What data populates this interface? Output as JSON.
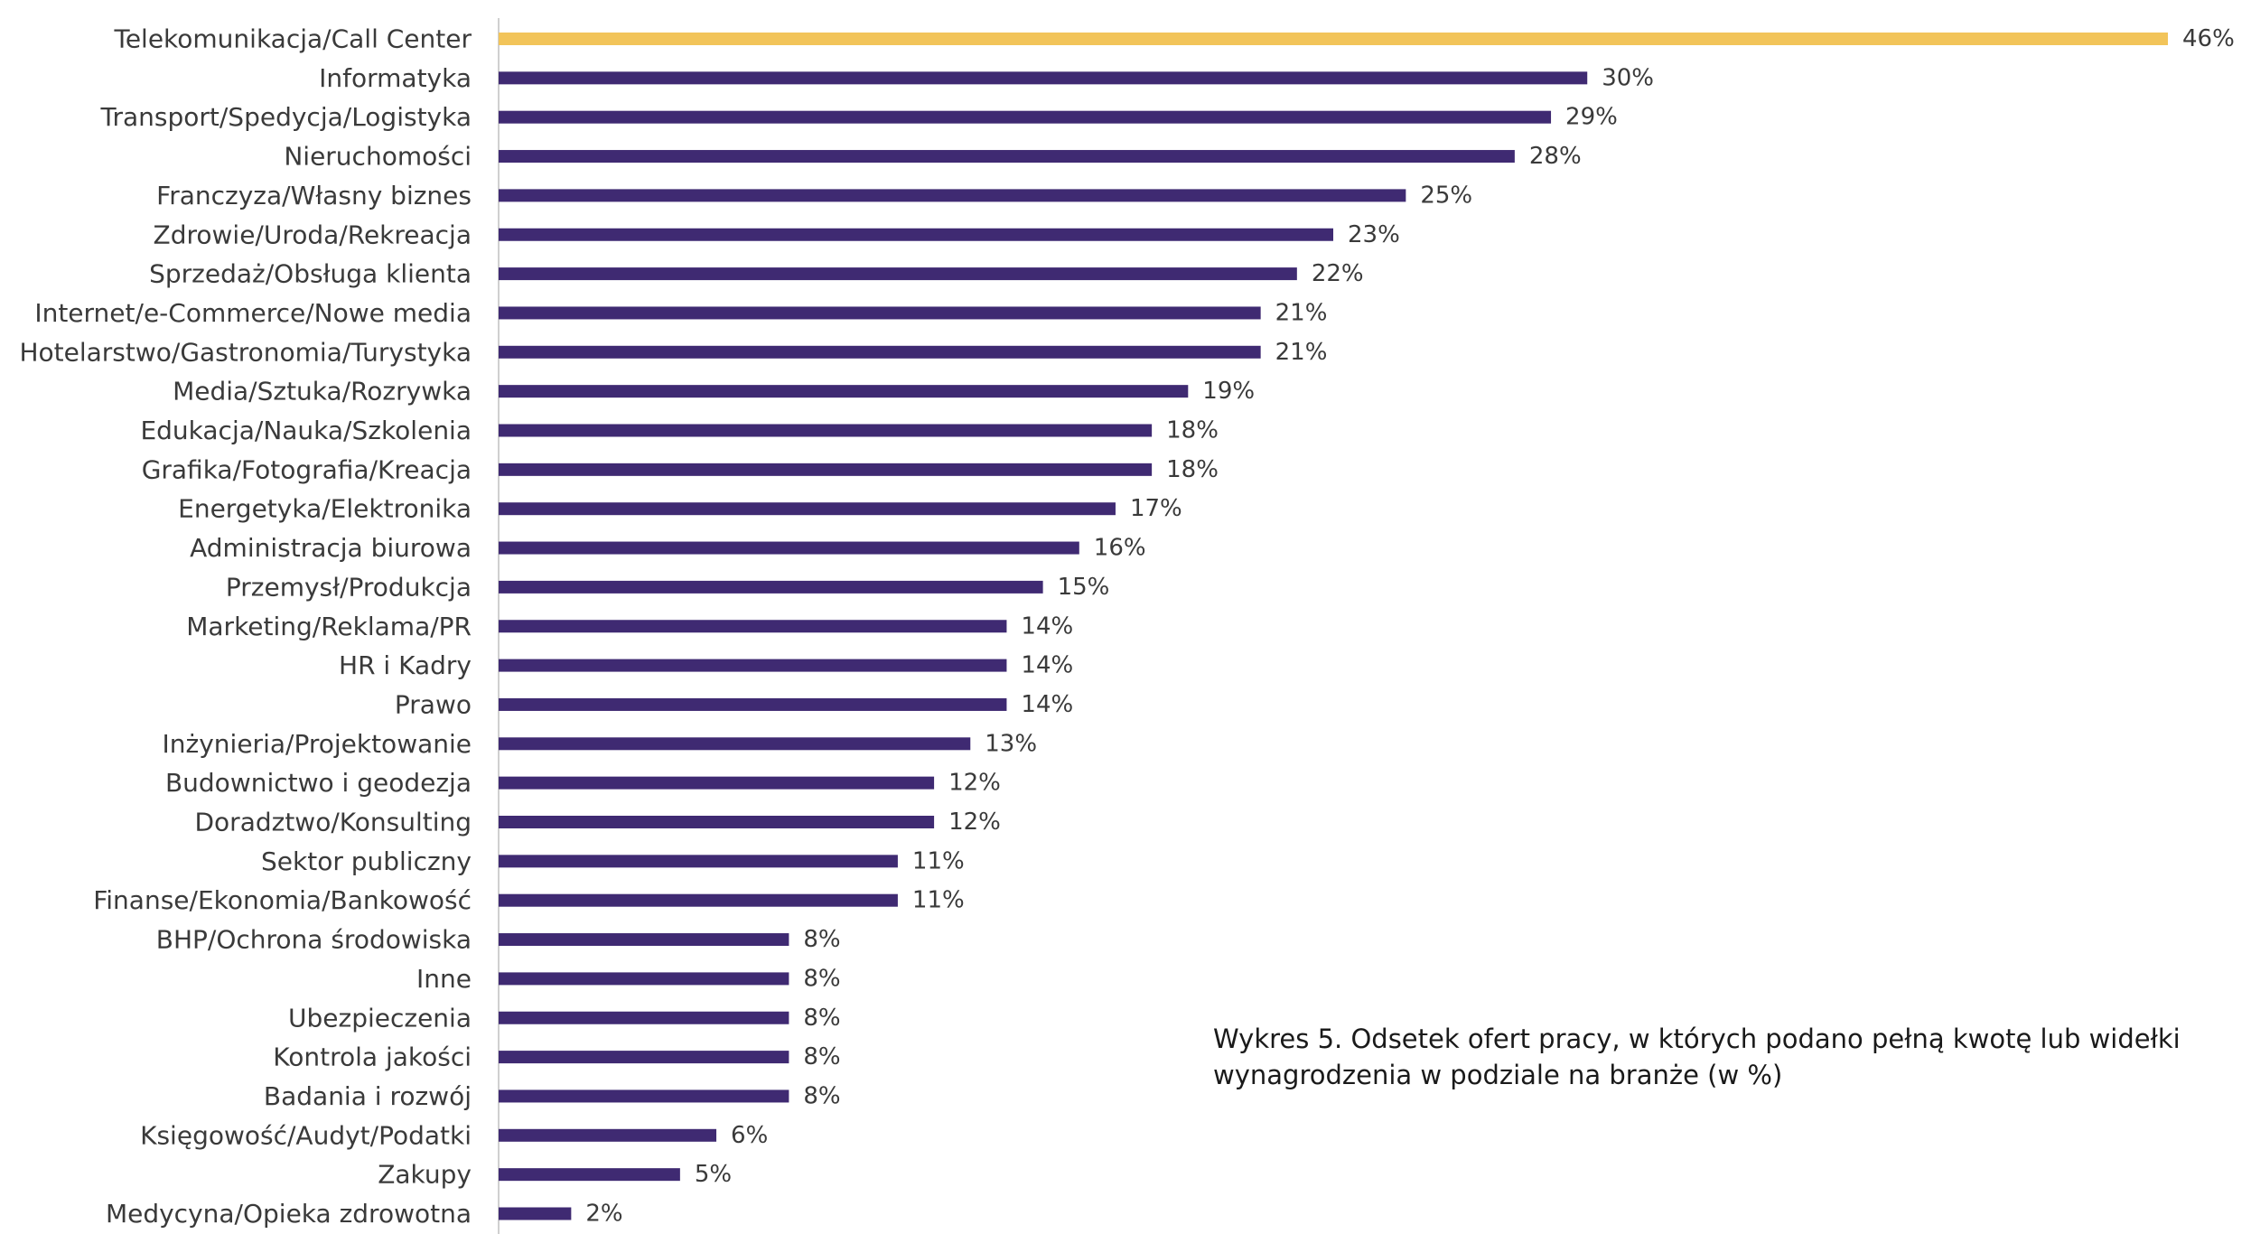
{
  "caption": "Wykres 5. Odsetek ofert pracy, w których podano pełną kwotę lub widełki wynagrodzenia w podziale na branże (w %)",
  "colors": {
    "highlight": "#F2C45A",
    "bar": "#3F2A72",
    "axis": "#d0d0d0"
  },
  "chart_data": {
    "type": "bar",
    "orientation": "horizontal",
    "value_suffix": "%",
    "xlim": [
      0,
      46
    ],
    "grid": false,
    "categories": [
      "Telekomunikacja/Call Center",
      "Informatyka",
      "Transport/Spedycja/Logistyka",
      "Nieruchomości",
      "Franczyza/Własny biznes",
      "Zdrowie/Uroda/Rekreacja",
      "Sprzedaż/Obsługa klienta",
      "Internet/e-Commerce/Nowe media",
      "Hotelarstwo/Gastronomia/Turystyka",
      "Media/Sztuka/Rozrywka",
      "Edukacja/Nauka/Szkolenia",
      "Grafika/Fotografia/Kreacja",
      "Energetyka/Elektronika",
      "Administracja biurowa",
      "Przemysł/Produkcja",
      "Marketing/Reklama/PR",
      "HR i Kadry",
      "Prawo",
      "Inżynieria/Projektowanie",
      "Budownictwo i geodezja",
      "Doradztwo/Konsulting",
      "Sektor publiczny",
      "Finanse/Ekonomia/Bankowość",
      "BHP/Ochrona środowiska",
      "Inne",
      "Ubezpieczenia",
      "Kontrola jakości",
      "Badania i rozwój",
      "Księgowość/Audyt/Podatki",
      "Zakupy",
      "Medycyna/Opieka zdrowotna"
    ],
    "values": [
      46,
      30,
      29,
      28,
      25,
      23,
      22,
      21,
      21,
      19,
      18,
      18,
      17,
      16,
      15,
      14,
      14,
      14,
      13,
      12,
      12,
      11,
      11,
      8,
      8,
      8,
      8,
      8,
      6,
      5,
      2
    ],
    "labels": [
      "46%",
      "30%",
      "29%",
      "28%",
      "25%",
      "23%",
      "22%",
      "21%",
      "21%",
      "19%",
      "18%",
      "18%",
      "17%",
      "16%",
      "15%",
      "14%",
      "14%",
      "14%",
      "13%",
      "12%",
      "12%",
      "11%",
      "11%",
      "8%",
      "8%",
      "8%",
      "8%",
      "8%",
      "6%",
      "5%",
      "2%"
    ],
    "highlight_index": 0
  }
}
